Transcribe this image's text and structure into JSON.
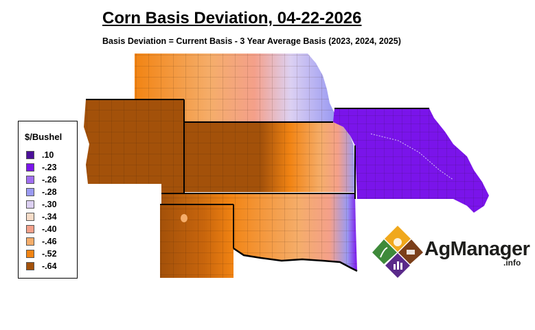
{
  "title": "Corn Basis Deviation, 04-22-2026",
  "subtitle": "Basis Deviation = Current Basis - 3 Year Average Basis (2023, 2024, 2025)",
  "legend": {
    "title": "$/Bushel",
    "items": [
      {
        "label": ".10",
        "color": "#4b0f99"
      },
      {
        "label": "-.23",
        "color": "#7a14ea"
      },
      {
        "label": "-.26",
        "color": "#a06ef0"
      },
      {
        "label": "-.28",
        "color": "#9a9af2"
      },
      {
        "label": "-.30",
        "color": "#dcd0f2"
      },
      {
        "label": "-.34",
        "color": "#f6dcc8"
      },
      {
        "label": "-.40",
        "color": "#f4a08a"
      },
      {
        "label": "-.46",
        "color": "#f5ad6a"
      },
      {
        "label": "-.52",
        "color": "#f28413"
      },
      {
        "label": "-.64",
        "color": "#a3510a"
      }
    ]
  },
  "logo": {
    "name": "AgManager",
    "suffix": ".info"
  }
}
